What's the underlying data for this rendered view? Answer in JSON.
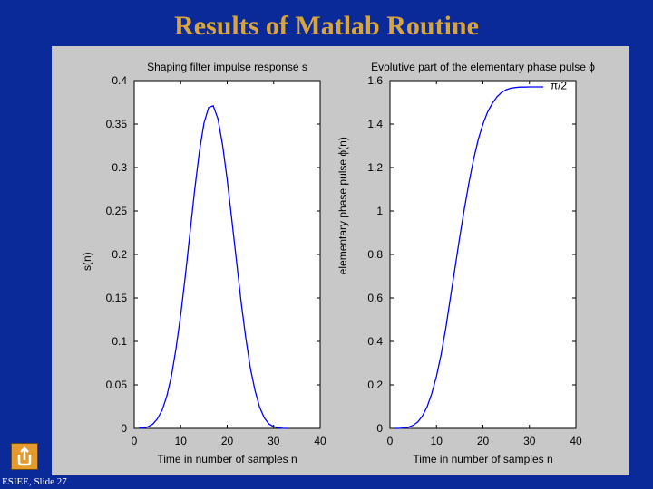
{
  "slide": {
    "title": "Results of Matlab Routine",
    "footer": "ESIEE, Slide 27",
    "nav_button_icon": "return-arrow-icon"
  },
  "colors": {
    "background": "#0b2a9a",
    "title": "#d9a53a",
    "figure_bg": "#c8c8c8",
    "axes_bg": "#ffffff",
    "line": "#0000ff"
  },
  "chart_data": [
    {
      "type": "line",
      "title": "Shaping filter impulse response s",
      "xlabel": "Time in number of samples n",
      "ylabel": "s(n)",
      "xlim": [
        0,
        40
      ],
      "ylim": [
        0,
        0.4
      ],
      "xticks": [
        "0",
        "10",
        "20",
        "30",
        "40"
      ],
      "yticks": [
        "0",
        "0.05",
        "0.1",
        "0.15",
        "0.2",
        "0.25",
        "0.3",
        "0.35",
        "0.4"
      ],
      "grid": false,
      "series": [
        {
          "x": [
            1,
            2,
            3,
            4,
            5,
            6,
            7,
            8,
            9,
            10,
            11,
            12,
            13,
            14,
            15,
            16,
            17,
            18,
            19,
            20,
            21,
            22,
            23,
            24,
            25,
            26,
            27,
            28,
            29,
            30,
            31,
            32,
            33
          ],
          "values": [
            0.0002,
            0.0005,
            0.002,
            0.005,
            0.011,
            0.021,
            0.037,
            0.06,
            0.092,
            0.131,
            0.176,
            0.225,
            0.274,
            0.318,
            0.351,
            0.369,
            0.371,
            0.356,
            0.326,
            0.286,
            0.24,
            0.192,
            0.145,
            0.104,
            0.069,
            0.043,
            0.024,
            0.012,
            0.005,
            0.002,
            0.0005,
            0.0001,
            0.0
          ]
        }
      ]
    },
    {
      "type": "line",
      "title": "Evolutive part of the elementary phase pulse ϕ",
      "xlabel": "Time in number of samples n",
      "ylabel": "elementary phase pulse ϕ(n)",
      "xlim": [
        0,
        40
      ],
      "ylim": [
        0,
        1.6
      ],
      "xticks": [
        "0",
        "10",
        "20",
        "30",
        "40"
      ],
      "yticks": [
        "0",
        "0.2",
        "0.4",
        "0.6",
        "0.8",
        "1",
        "1.2",
        "1.4",
        "1.6"
      ],
      "annotation": "π/2",
      "grid": false,
      "series": [
        {
          "x": [
            1,
            2,
            3,
            4,
            5,
            6,
            7,
            8,
            9,
            10,
            11,
            12,
            13,
            14,
            15,
            16,
            17,
            18,
            19,
            20,
            21,
            22,
            23,
            24,
            25,
            26,
            27,
            28,
            29,
            30,
            31,
            32,
            33
          ],
          "values": [
            0.0,
            0.0,
            0.002,
            0.006,
            0.014,
            0.03,
            0.058,
            0.1,
            0.16,
            0.24,
            0.34,
            0.46,
            0.6,
            0.74,
            0.88,
            1.01,
            1.13,
            1.24,
            1.33,
            1.4,
            1.455,
            1.495,
            1.525,
            1.545,
            1.558,
            1.565,
            1.568,
            1.57,
            1.57,
            1.571,
            1.571,
            1.571,
            1.571
          ]
        }
      ]
    }
  ]
}
